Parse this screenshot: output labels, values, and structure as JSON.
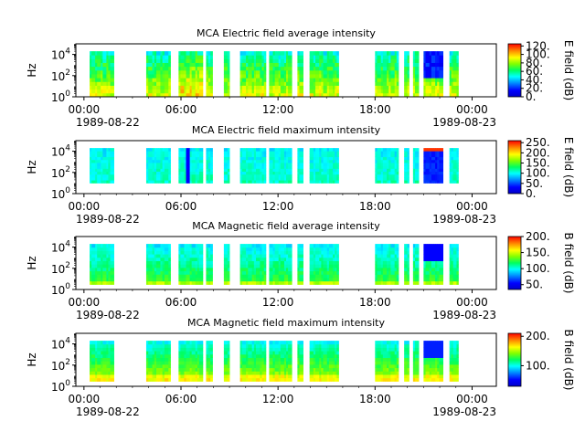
{
  "chart_data": [
    {
      "type": "heatmap",
      "title": "MCA  Electric field average intensity",
      "ylabel": "Hz",
      "yscale": "log",
      "ylim": [
        1,
        100000
      ],
      "ytick_labels": [
        "10^0",
        "10^2",
        "10^4"
      ],
      "x_tick_labels": [
        "00:00",
        "06:00",
        "12:00",
        "18:00",
        "00:00"
      ],
      "x_date_labels": [
        "1989-08-22",
        "1989-08-23"
      ],
      "colorbar": {
        "label": "E field (dB)",
        "range": [
          0,
          125
        ],
        "ticks": [
          "120.",
          "100.",
          "80.",
          "60.",
          "40.",
          "20.",
          "0."
        ]
      },
      "data_intervals_hours": [
        [
          0.35,
          1.85
        ],
        [
          3.85,
          5.35
        ],
        [
          5.85,
          7.35
        ],
        [
          7.55,
          7.95
        ],
        [
          8.65,
          9.0
        ],
        [
          9.65,
          11.25
        ],
        [
          11.45,
          12.85
        ],
        [
          13.2,
          13.55
        ],
        [
          13.95,
          15.75
        ],
        [
          18.0,
          19.45
        ],
        [
          19.8,
          20.1
        ],
        [
          20.35,
          20.7
        ],
        [
          21.0,
          22.2
        ],
        [
          22.6,
          23.15
        ]
      ],
      "freq_range": [
        1,
        20000
      ],
      "dominant_levels": {
        "low_freq": "high (yellow-orange)",
        "high_freq": "medium (green-cyan)",
        "21h_upper": "low (blue)"
      }
    },
    {
      "type": "heatmap",
      "title": "MCA  Electric field maximum intensity",
      "ylabel": "Hz",
      "yscale": "log",
      "ylim": [
        1,
        100000
      ],
      "ytick_labels": [
        "10^0",
        "10^2",
        "10^4"
      ],
      "x_tick_labels": [
        "00:00",
        "06:00",
        "12:00",
        "18:00",
        "00:00"
      ],
      "x_date_labels": [
        "1989-08-22",
        "1989-08-23"
      ],
      "colorbar": {
        "label": "E field (dB)",
        "range": [
          0,
          260
        ],
        "ticks": [
          "250.",
          "200.",
          "150.",
          "100.",
          "50.",
          "0."
        ]
      },
      "data_intervals_hours": [
        [
          0.35,
          1.85
        ],
        [
          3.85,
          5.35
        ],
        [
          5.85,
          7.35
        ],
        [
          7.55,
          7.95
        ],
        [
          8.65,
          9.0
        ],
        [
          9.65,
          11.25
        ],
        [
          11.45,
          12.85
        ],
        [
          13.2,
          13.55
        ],
        [
          13.95,
          15.75
        ],
        [
          18.0,
          19.45
        ],
        [
          19.8,
          20.1
        ],
        [
          20.35,
          20.7
        ],
        [
          21.0,
          22.2
        ],
        [
          22.6,
          23.15
        ]
      ],
      "freq_range": [
        10,
        20000
      ],
      "dominant_levels": {
        "general": "medium (cyan-green)",
        "21h": "low (blue)",
        "21h_top": "high (red)"
      }
    },
    {
      "type": "heatmap",
      "title": "MCA  Magnetic field average intensity",
      "ylabel": "Hz",
      "yscale": "log",
      "ylim": [
        1,
        100000
      ],
      "ytick_labels": [
        "10^0",
        "10^2",
        "10^4"
      ],
      "x_tick_labels": [
        "00:00",
        "06:00",
        "12:00",
        "18:00",
        "00:00"
      ],
      "x_date_labels": [
        "1989-08-22",
        "1989-08-23"
      ],
      "colorbar": {
        "label": "B field (dB)",
        "range": [
          35,
          200
        ],
        "ticks": [
          "200.",
          "150.",
          "100.",
          "50."
        ]
      },
      "data_intervals_hours": [
        [
          0.35,
          1.85
        ],
        [
          3.85,
          5.35
        ],
        [
          5.85,
          7.35
        ],
        [
          7.55,
          7.95
        ],
        [
          8.65,
          9.0
        ],
        [
          9.65,
          11.25
        ],
        [
          11.45,
          12.85
        ],
        [
          13.2,
          13.55
        ],
        [
          13.95,
          15.75
        ],
        [
          18.0,
          19.45
        ],
        [
          19.8,
          20.1
        ],
        [
          20.35,
          20.7
        ],
        [
          21.0,
          22.2
        ],
        [
          22.6,
          23.15
        ]
      ],
      "freq_range": [
        3,
        20000
      ],
      "dominant_levels": {
        "upper": "cyan-blue",
        "lower": "green",
        "21h_upper": "blue"
      }
    },
    {
      "type": "heatmap",
      "title": "MCA  Magnetic field maximum intensity",
      "ylabel": "Hz",
      "yscale": "log",
      "ylim": [
        1,
        100000
      ],
      "ytick_labels": [
        "10^0",
        "10^2",
        "10^4"
      ],
      "x_tick_labels": [
        "00:00",
        "06:00",
        "12:00",
        "18:00",
        "00:00"
      ],
      "x_date_labels": [
        "1989-08-22",
        "1989-08-23"
      ],
      "colorbar": {
        "label": "B field (dB)",
        "range": [
          30,
          210
        ],
        "ticks": [
          "200.",
          "100."
        ]
      },
      "data_intervals_hours": [
        [
          0.35,
          1.85
        ],
        [
          3.85,
          5.35
        ],
        [
          5.85,
          7.35
        ],
        [
          7.55,
          7.95
        ],
        [
          8.65,
          9.0
        ],
        [
          9.65,
          11.25
        ],
        [
          11.45,
          12.85
        ],
        [
          13.2,
          13.55
        ],
        [
          13.95,
          15.75
        ],
        [
          18.0,
          19.45
        ],
        [
          19.8,
          20.1
        ],
        [
          20.35,
          20.7
        ],
        [
          21.0,
          22.2
        ],
        [
          22.6,
          23.15
        ]
      ],
      "freq_range": [
        3,
        20000
      ],
      "dominant_levels": {
        "upper": "cyan",
        "lower": "yellow-green",
        "21h_upper": "blue"
      }
    }
  ]
}
